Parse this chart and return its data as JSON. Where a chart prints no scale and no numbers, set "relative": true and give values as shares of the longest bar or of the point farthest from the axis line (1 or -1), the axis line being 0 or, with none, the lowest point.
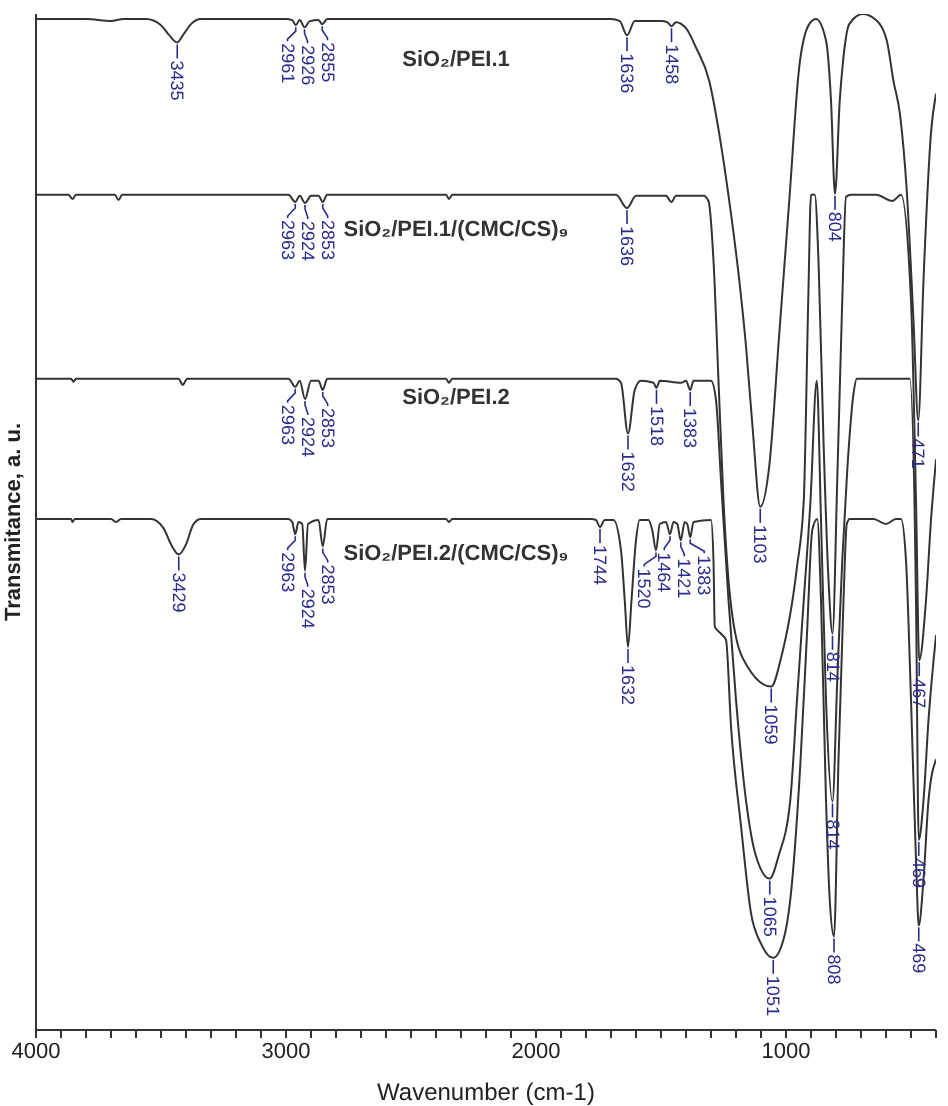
{
  "chart_data": {
    "type": "line",
    "relative": true,
    "xlabel": "Wavenumber (cm-1)",
    "ylabel": "Transmitance, a. u.",
    "xlim": [
      4000,
      400
    ],
    "xticks": [
      4000,
      {
        "value": 3900,
        "label": null
      },
      {
        "value": 3800,
        "label": null
      },
      {
        "value": 3700,
        "label": null
      },
      {
        "value": 3600,
        "label": null
      },
      {
        "value": 3500,
        "label": null
      },
      {
        "value": 3400,
        "label": null
      },
      {
        "value": 3300,
        "label": null
      },
      {
        "value": 3200,
        "label": null
      },
      {
        "value": 3100,
        "label": null
      },
      3000,
      {
        "value": 2900,
        "label": null
      },
      {
        "value": 2800,
        "label": null
      },
      {
        "value": 2700,
        "label": null
      },
      {
        "value": 2600,
        "label": null
      },
      {
        "value": 2500,
        "label": null
      },
      {
        "value": 2400,
        "label": null
      },
      {
        "value": 2300,
        "label": null
      },
      {
        "value": 2200,
        "label": null
      },
      {
        "value": 2100,
        "label": null
      },
      2000,
      {
        "value": 1900,
        "label": null
      },
      {
        "value": 1800,
        "label": null
      },
      {
        "value": 1700,
        "label": null
      },
      {
        "value": 1600,
        "label": null
      },
      {
        "value": 1500,
        "label": null
      },
      {
        "value": 1400,
        "label": null
      },
      {
        "value": 1300,
        "label": null
      },
      {
        "value": 1200,
        "label": null
      },
      {
        "value": 1100,
        "label": null
      },
      1000,
      {
        "value": 900,
        "label": null
      },
      {
        "value": 800,
        "label": null
      },
      {
        "value": 700,
        "label": null
      },
      {
        "value": 600,
        "label": null
      },
      {
        "value": 500,
        "label": null
      },
      {
        "value": 400,
        "label": null
      }
    ],
    "series": [
      {
        "name": "SiO₂/PEI.1",
        "color": "#333333",
        "x": [
          4000,
          3800,
          3700,
          3650,
          3560,
          3500,
          3470,
          3435,
          3410,
          3380,
          3340,
          3000,
          2975,
          2961,
          2945,
          2926,
          2905,
          2870,
          2855,
          2835,
          2400,
          1700,
          1665,
          1636,
          1605,
          1500,
          1475,
          1458,
          1440,
          1400,
          1360,
          1307,
          1267,
          1227,
          1187,
          1160,
          1134,
          1103,
          1067,
          1027,
          987,
          947,
          907,
          880,
          840,
          820,
          804,
          785,
          774,
          747,
          693,
          640,
          597,
          570,
          544,
          518,
          490,
          471,
          450,
          420,
          400
        ],
        "values": [
          0.995,
          0.995,
          0.993,
          0.995,
          0.995,
          0.989,
          0.98,
          0.972,
          0.98,
          0.99,
          0.995,
          0.995,
          0.994,
          0.989,
          0.994,
          0.987,
          0.993,
          0.994,
          0.99,
          0.995,
          0.995,
          0.995,
          0.993,
          0.979,
          0.993,
          0.993,
          0.992,
          0.988,
          0.992,
          0.986,
          0.967,
          0.934,
          0.882,
          0.816,
          0.738,
          0.673,
          0.594,
          0.515,
          0.555,
          0.685,
          0.816,
          0.948,
          0.99,
          0.995,
          0.974,
          0.915,
          0.823,
          0.915,
          0.948,
          0.99,
          1.0,
          0.994,
          0.974,
          0.934,
          0.901,
          0.83,
          0.698,
          0.6,
          0.738,
          0.883,
          0.921
        ]
      },
      {
        "name": "SiO₂/PEI.1/(CMC/CS)₉",
        "color": "#333333",
        "x": [
          4000,
          3870,
          3854,
          3840,
          3685,
          3670,
          3655,
          2990,
          2963,
          2945,
          2924,
          2900,
          2870,
          2853,
          2835,
          2360,
          2348,
          2335,
          1680,
          1636,
          1600,
          1480,
          1458,
          1440,
          1330,
          1310,
          1290,
          1270,
          1250,
          1236,
          1208,
          1155,
          1059,
          1022,
          956,
          929,
          911,
          900,
          885,
          870,
          850,
          830,
          814,
          795,
          775,
          760,
          740,
          640,
          574,
          540,
          500,
          480,
          467,
          440,
          420,
          400
        ],
        "values": [
          0.822,
          0.822,
          0.818,
          0.822,
          0.822,
          0.817,
          0.822,
          0.822,
          0.815,
          0.821,
          0.814,
          0.821,
          0.821,
          0.815,
          0.822,
          0.822,
          0.818,
          0.822,
          0.822,
          0.809,
          0.821,
          0.821,
          0.815,
          0.821,
          0.821,
          0.816,
          0.757,
          0.639,
          0.521,
          0.462,
          0.397,
          0.358,
          0.338,
          0.364,
          0.456,
          0.521,
          0.718,
          0.822,
          0.822,
          0.757,
          0.58,
          0.443,
          0.39,
          0.541,
          0.718,
          0.82,
          0.822,
          0.822,
          0.816,
          0.822,
          0.718,
          0.521,
          0.364,
          0.423,
          0.502,
          0.561
        ]
      },
      {
        "name": "SiO₂/PEI.2",
        "color": "#333333",
        "x": [
          4000,
          3860,
          3850,
          3840,
          3430,
          3413,
          3395,
          2990,
          2963,
          2945,
          2924,
          2900,
          2870,
          2853,
          2835,
          2360,
          2348,
          2335,
          1680,
          1660,
          1632,
          1605,
          1580,
          1530,
          1518,
          1505,
          1420,
          1400,
          1383,
          1370,
          1300,
          1280,
          1260,
          1230,
          1200,
          1160,
          1120,
          1065,
          1030,
          983,
          956,
          929,
          902,
          877,
          860,
          840,
          814,
          795,
          775,
          755,
          730,
          717,
          505,
          480,
          469,
          450,
          430,
          400
        ],
        "values": [
          0.641,
          0.641,
          0.638,
          0.641,
          0.641,
          0.635,
          0.641,
          0.641,
          0.633,
          0.639,
          0.621,
          0.639,
          0.639,
          0.63,
          0.641,
          0.641,
          0.637,
          0.641,
          0.641,
          0.637,
          0.587,
          0.63,
          0.639,
          0.637,
          0.632,
          0.639,
          0.637,
          0.639,
          0.63,
          0.639,
          0.639,
          0.62,
          0.541,
          0.423,
          0.325,
          0.226,
          0.171,
          0.149,
          0.171,
          0.226,
          0.325,
          0.423,
          0.521,
          0.639,
          0.502,
          0.325,
          0.225,
          0.344,
          0.462,
          0.551,
          0.626,
          0.641,
          0.641,
          0.423,
          0.187,
          0.226,
          0.305,
          0.388
        ]
      },
      {
        "name": "SiO₂/PEI.2/(CMC/CS)₉",
        "color": "#333333",
        "x": [
          4000,
          3860,
          3854,
          3845,
          3700,
          3680,
          3660,
          3540,
          3490,
          3460,
          3429,
          3400,
          3370,
          3340,
          2990,
          2975,
          2963,
          2950,
          2935,
          2924,
          2912,
          2870,
          2853,
          2835,
          2360,
          2348,
          2335,
          1780,
          1760,
          1744,
          1725,
          1690,
          1660,
          1645,
          1632,
          1618,
          1600,
          1585,
          1550,
          1535,
          1520,
          1505,
          1480,
          1464,
          1450,
          1435,
          1421,
          1405,
          1395,
          1383,
          1370,
          1300,
          1290,
          1285,
          1260,
          1240,
          1220,
          1180,
          1140,
          1100,
          1051,
          1010,
          983,
          943,
          916,
          895,
          875,
          860,
          840,
          825,
          808,
          790,
          770,
          757,
          745,
          700,
          650,
          600,
          560,
          540,
          520,
          500,
          480,
          469,
          450,
          430,
          400
        ],
        "values": [
          0.503,
          0.503,
          0.5,
          0.503,
          0.503,
          0.5,
          0.503,
          0.503,
          0.494,
          0.478,
          0.468,
          0.478,
          0.498,
          0.503,
          0.503,
          0.5,
          0.488,
          0.5,
          0.498,
          0.452,
          0.498,
          0.502,
          0.476,
          0.503,
          0.503,
          0.5,
          0.503,
          0.503,
          0.502,
          0.495,
          0.502,
          0.502,
          0.472,
          0.423,
          0.377,
          0.423,
          0.482,
          0.502,
          0.502,
          0.492,
          0.472,
          0.498,
          0.5,
          0.488,
          0.5,
          0.498,
          0.482,
          0.5,
          0.498,
          0.485,
          0.5,
          0.502,
          0.462,
          0.397,
          0.39,
          0.384,
          0.299,
          0.201,
          0.115,
          0.085,
          0.071,
          0.089,
          0.128,
          0.26,
          0.39,
          0.492,
          0.503,
          0.423,
          0.226,
          0.128,
          0.092,
          0.266,
          0.423,
          0.498,
          0.503,
          0.503,
          0.503,
          0.498,
          0.503,
          0.503,
          0.462,
          0.325,
          0.167,
          0.103,
          0.148,
          0.226,
          0.266
        ]
      }
    ],
    "annotations": [
      {
        "text": "3435",
        "x": 3435,
        "y": 0.972
      },
      {
        "text": "2961",
        "x": 2961,
        "y": 0.989
      },
      {
        "text": "2926",
        "x": 2926,
        "y": 0.987
      },
      {
        "text": "2855",
        "x": 2855,
        "y": 0.99
      },
      {
        "text": "1636",
        "x": 1636,
        "y": 0.979
      },
      {
        "text": "1458",
        "x": 1458,
        "y": 0.988
      },
      {
        "text": "1103",
        "x": 1103,
        "y": 0.515
      },
      {
        "text": "804",
        "x": 804,
        "y": 0.823
      },
      {
        "text": "471",
        "x": 471,
        "y": 0.6
      },
      {
        "text": "2963",
        "x": 2963,
        "y": 0.815
      },
      {
        "text": "2924",
        "x": 2924,
        "y": 0.814
      },
      {
        "text": "2853",
        "x": 2853,
        "y": 0.815
      },
      {
        "text": "1636",
        "x": 1636,
        "y": 0.809
      },
      {
        "text": "1059",
        "x": 1059,
        "y": 0.338
      },
      {
        "text": "814",
        "x": 814,
        "y": 0.39
      },
      {
        "text": "467",
        "x": 467,
        "y": 0.364
      },
      {
        "text": "2963",
        "x": 2963,
        "y": 0.633
      },
      {
        "text": "2924",
        "x": 2924,
        "y": 0.621
      },
      {
        "text": "2853",
        "x": 2853,
        "y": 0.63
      },
      {
        "text": "1632",
        "x": 1632,
        "y": 0.587
      },
      {
        "text": "1518",
        "x": 1518,
        "y": 0.632
      },
      {
        "text": "1383",
        "x": 1383,
        "y": 0.63
      },
      {
        "text": "1065",
        "x": 1065,
        "y": 0.149
      },
      {
        "text": "814",
        "x": 814,
        "y": 0.225
      },
      {
        "text": "469",
        "x": 469,
        "y": 0.187
      },
      {
        "text": "3429",
        "x": 3429,
        "y": 0.468
      },
      {
        "text": "2963",
        "x": 2963,
        "y": 0.488
      },
      {
        "text": "2924",
        "x": 2924,
        "y": 0.452
      },
      {
        "text": "2853",
        "x": 2853,
        "y": 0.476
      },
      {
        "text": "1744",
        "x": 1744,
        "y": 0.495
      },
      {
        "text": "1632",
        "x": 1632,
        "y": 0.377
      },
      {
        "text": "1520",
        "x": 1520,
        "y": 0.472
      },
      {
        "text": "1464",
        "x": 1464,
        "y": 0.488
      },
      {
        "text": "1421",
        "x": 1421,
        "y": 0.482
      },
      {
        "text": "1383",
        "x": 1383,
        "y": 0.485
      },
      {
        "text": "1051",
        "x": 1051,
        "y": 0.071
      },
      {
        "text": "808",
        "x": 808,
        "y": 0.092
      },
      {
        "text": "469",
        "x": 469,
        "y": 0.103
      }
    ]
  }
}
